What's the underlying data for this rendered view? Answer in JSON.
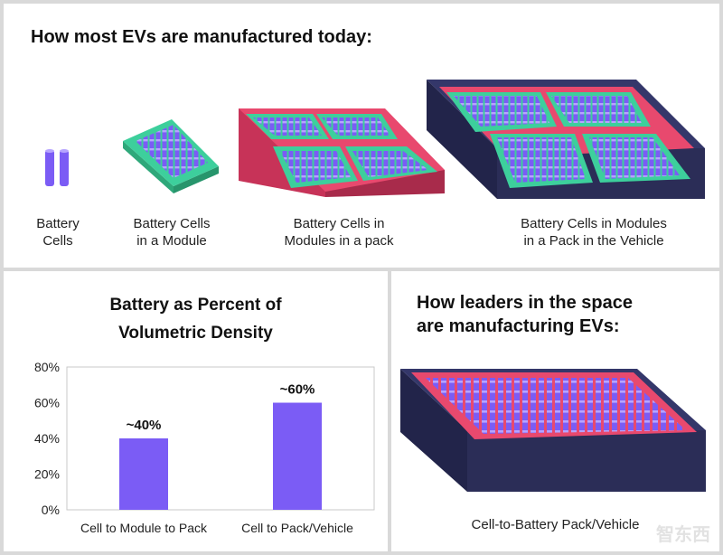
{
  "top": {
    "title": "How most EVs are manufactured today:",
    "stages": [
      {
        "line1": "Battery",
        "line2": "Cells"
      },
      {
        "line1": "Battery Cells",
        "line2": "in a Module"
      },
      {
        "line1": "Battery Cells in",
        "line2": "Modules in a pack"
      },
      {
        "line1": "Battery Cells in Modules",
        "line2": "in a Pack in the Vehicle"
      }
    ]
  },
  "chart_panel": {
    "title_line1": "Battery as Percent of",
    "title_line2": "Volumetric Density"
  },
  "leaders": {
    "title_line1": "How leaders in the space",
    "title_line2": "are manufacturing EVs:",
    "caption": "Cell-to-Battery Pack/Vehicle"
  },
  "watermark": "智东西",
  "colors": {
    "cell": "#7b5cf5",
    "module": "#3dcf9c",
    "pack": "#e8496e",
    "vehicle": "#2b2d57",
    "bar": "#7b5cf5"
  },
  "chart_data": {
    "type": "bar",
    "title": "Battery as Percent of Volumetric Density",
    "categories": [
      "Cell to Module to Pack",
      "Cell to Pack/Vehicle"
    ],
    "values": [
      40,
      60
    ],
    "data_labels": [
      "~40%",
      "~60%"
    ],
    "yticks": [
      "0%",
      "20%",
      "40%",
      "60%",
      "80%"
    ],
    "ylim": [
      0,
      80
    ],
    "xlabel": "",
    "ylabel": "",
    "grid": false
  }
}
